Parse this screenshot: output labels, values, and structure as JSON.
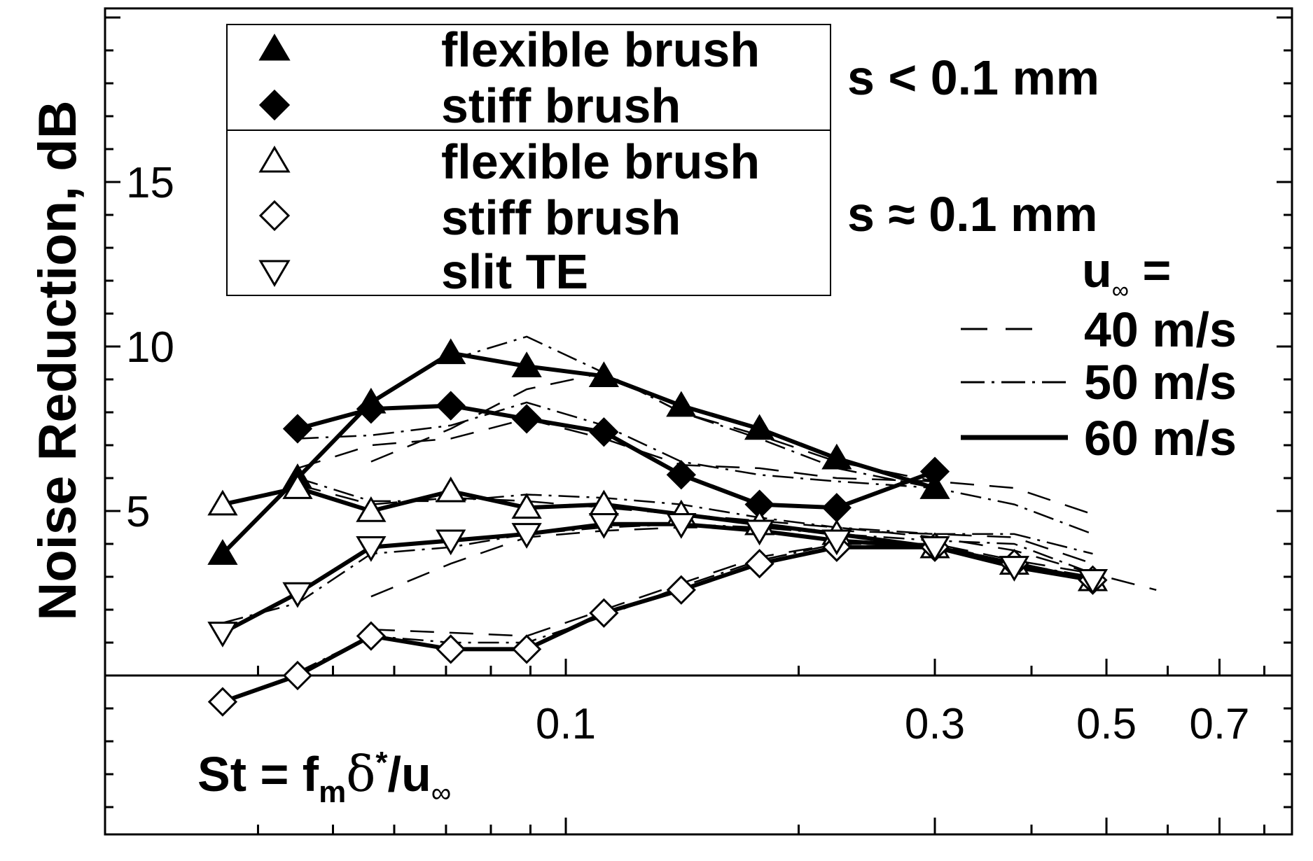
{
  "chart_data": {
    "type": "line",
    "ylabel": "Noise Reduction, dB",
    "xlabel_parts": {
      "base": "St = f",
      "sub1": "m",
      "mid": "δ",
      "sup": "*",
      "tail": "/u",
      "sub2": "∞"
    },
    "x_scale": "log",
    "xlim": [
      0.03,
      0.85
    ],
    "ylim": [
      -5,
      20
    ],
    "x_ticks": [
      0.1,
      0.3,
      0.5,
      0.7
    ],
    "x_tick_labels": [
      "0.1",
      "0.3",
      "0.5",
      "0.7"
    ],
    "y_ticks": [
      5,
      10,
      15
    ],
    "y_tick_labels": [
      "5",
      "10",
      "15"
    ],
    "legend": {
      "entries": [
        {
          "marker": "triangle-filled",
          "label": "flexible brush"
        },
        {
          "marker": "diamond-filled",
          "label": "stiff brush"
        },
        {
          "marker": "triangle-open",
          "label": "flexible brush"
        },
        {
          "marker": "diamond-open",
          "label": "stiff brush"
        },
        {
          "marker": "triangle-down-open",
          "label": "slit TE"
        }
      ],
      "group1_label": "s < 0.1 mm",
      "group2_label": "s ≈ 0.1 mm"
    },
    "speed_legend": {
      "title_base": "u",
      "title_sub": "∞",
      "title_eq": " =",
      "entries": [
        {
          "dash": "dashed",
          "label": "40 m/s"
        },
        {
          "dash": "dashdot",
          "label": "50 m/s"
        },
        {
          "dash": "solid",
          "label": "60 m/s"
        }
      ]
    },
    "series": [
      {
        "name": "flexible brush",
        "group": "s < 0.1 mm",
        "marker": "triangle-filled",
        "speed": "60 m/s",
        "x": [
          0.036,
          0.045,
          0.056,
          0.071,
          0.089,
          0.112,
          0.141,
          0.178,
          0.224,
          0.3
        ],
        "y": [
          3.7,
          6.0,
          8.3,
          9.8,
          9.4,
          9.1,
          8.2,
          7.5,
          6.6,
          5.7
        ]
      },
      {
        "name": "stiff brush",
        "group": "s < 0.1 mm",
        "marker": "diamond-filled",
        "speed": "60 m/s",
        "x": [
          0.045,
          0.056,
          0.071,
          0.089,
          0.112,
          0.141,
          0.178,
          0.224,
          0.3
        ],
        "y": [
          7.5,
          8.1,
          8.2,
          7.8,
          7.4,
          6.1,
          5.2,
          5.1,
          6.2
        ]
      },
      {
        "name": "flexible brush",
        "group": "s ≈ 0.1 mm",
        "marker": "triangle-open",
        "speed": "60 m/s",
        "x": [
          0.036,
          0.045,
          0.056,
          0.071,
          0.089,
          0.112,
          0.141,
          0.178,
          0.224,
          0.3,
          0.38,
          0.48
        ],
        "y": [
          5.2,
          5.7,
          5.0,
          5.6,
          5.1,
          5.2,
          4.9,
          4.6,
          4.3,
          3.9,
          3.4,
          2.9
        ]
      },
      {
        "name": "stiff brush",
        "group": "s ≈ 0.1 mm",
        "marker": "diamond-open",
        "speed": "60 m/s",
        "x": [
          0.036,
          0.045,
          0.056,
          0.071,
          0.089,
          0.112,
          0.141,
          0.178,
          0.224,
          0.3,
          0.38,
          0.48
        ],
        "y": [
          -0.8,
          0.0,
          1.2,
          0.8,
          0.8,
          1.9,
          2.6,
          3.4,
          3.9,
          3.9,
          3.4,
          2.9
        ]
      },
      {
        "name": "slit TE",
        "group": "s ≈ 0.1 mm",
        "marker": "triangle-down-open",
        "speed": "60 m/s",
        "x": [
          0.036,
          0.045,
          0.056,
          0.071,
          0.089,
          0.112,
          0.141,
          0.178,
          0.224,
          0.3,
          0.38,
          0.48
        ],
        "y": [
          1.3,
          2.5,
          3.9,
          4.1,
          4.3,
          4.6,
          4.6,
          4.4,
          4.1,
          3.9,
          3.3,
          2.9
        ]
      },
      {
        "speed": "50 m/s",
        "style": "dashdot",
        "x": [
          0.071,
          0.089,
          0.112,
          0.141,
          0.178,
          0.224,
          0.3
        ],
        "y": [
          9.6,
          10.3,
          9.2,
          8.0,
          7.2,
          6.3,
          5.7
        ]
      },
      {
        "speed": "40 m/s",
        "style": "dashed",
        "x": [
          0.056,
          0.071,
          0.089,
          0.112,
          0.141,
          0.178,
          0.224,
          0.3
        ],
        "y": [
          6.5,
          7.5,
          8.7,
          9.2,
          8.0,
          7.3,
          6.5,
          5.9
        ]
      },
      {
        "speed": "50 m/s",
        "style": "dashdot",
        "x": [
          0.045,
          0.056,
          0.071,
          0.089,
          0.112,
          0.141,
          0.178,
          0.224,
          0.3,
          0.38,
          0.48
        ],
        "y": [
          7.2,
          7.3,
          7.6,
          8.3,
          7.6,
          6.5,
          6.1,
          5.9,
          5.7,
          5.2,
          4.3
        ]
      },
      {
        "speed": "40 m/s",
        "style": "dashed",
        "x": [
          0.045,
          0.056,
          0.071,
          0.089,
          0.112,
          0.141,
          0.178,
          0.224,
          0.3,
          0.38,
          0.48
        ],
        "y": [
          6.3,
          7.0,
          7.2,
          7.8,
          7.2,
          6.4,
          6.3,
          6.0,
          5.9,
          5.7,
          4.9
        ]
      },
      {
        "speed": "50 m/s",
        "style": "dashdot",
        "x": [
          0.045,
          0.056,
          0.071,
          0.089,
          0.112,
          0.141,
          0.178,
          0.224,
          0.3,
          0.38,
          0.48
        ],
        "y": [
          6.0,
          5.3,
          5.3,
          5.5,
          5.4,
          5.2,
          4.8,
          4.5,
          4.3,
          4.3,
          3.7
        ]
      },
      {
        "speed": "40 m/s",
        "style": "dashed",
        "x": [
          0.045,
          0.056,
          0.071,
          0.089,
          0.112,
          0.141,
          0.178,
          0.224,
          0.3,
          0.38,
          0.48,
          0.58
        ],
        "y": [
          5.8,
          5.2,
          5.4,
          5.3,
          5.1,
          4.9,
          4.7,
          4.5,
          4.2,
          3.8,
          3.1,
          2.6
        ]
      },
      {
        "speed": "50 m/s",
        "style": "dashdot",
        "x": [
          0.036,
          0.045,
          0.056,
          0.071,
          0.089,
          0.112,
          0.141,
          0.178,
          0.224,
          0.3,
          0.38,
          0.48
        ],
        "y": [
          1.6,
          2.2,
          3.7,
          3.9,
          4.3,
          4.5,
          4.6,
          4.5,
          4.3,
          4.1,
          4.0,
          3.1
        ]
      },
      {
        "speed": "40 m/s",
        "style": "dashed",
        "x": [
          0.056,
          0.071,
          0.089,
          0.112,
          0.141,
          0.178,
          0.224,
          0.3,
          0.38,
          0.48
        ],
        "y": [
          2.4,
          3.4,
          4.2,
          4.4,
          4.5,
          4.5,
          4.4,
          4.3,
          4.2,
          3.4
        ]
      },
      {
        "speed": "50 m/s",
        "style": "dashdot",
        "x": [
          0.045,
          0.056,
          0.071,
          0.089,
          0.112,
          0.141,
          0.178,
          0.224,
          0.3,
          0.38,
          0.48
        ],
        "y": [
          0.1,
          1.2,
          1.0,
          1.0,
          1.8,
          2.7,
          3.5,
          4.0,
          4.0,
          3.4,
          3.0
        ]
      },
      {
        "speed": "40 m/s",
        "style": "dashed",
        "x": [
          0.056,
          0.071,
          0.089,
          0.112,
          0.141,
          0.178,
          0.224,
          0.3,
          0.38,
          0.48
        ],
        "y": [
          1.4,
          1.3,
          1.2,
          2.0,
          2.8,
          3.6,
          4.0,
          4.0,
          3.5,
          3.1
        ]
      }
    ]
  }
}
